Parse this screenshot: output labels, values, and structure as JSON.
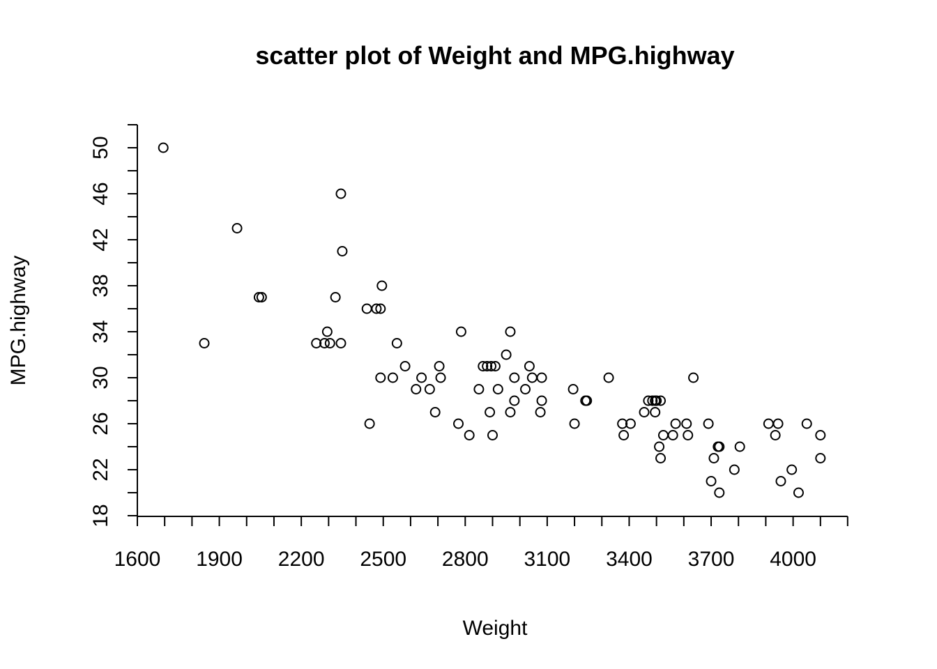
{
  "chart_data": {
    "type": "scatter",
    "title": "scatter plot of Weight and MPG.highway",
    "xlabel": "Weight",
    "ylabel": "MPG.highway",
    "xlim": [
      1600,
      4200
    ],
    "ylim": [
      18,
      52
    ],
    "x_ticks": [
      1600,
      1900,
      2200,
      2500,
      2800,
      3100,
      3400,
      3700,
      4000
    ],
    "x_minor_ticks": [
      1700,
      1800,
      2000,
      2100,
      2300,
      2400,
      2600,
      2700,
      2900,
      3000,
      3200,
      3300,
      3500,
      3600,
      3800,
      3900,
      4100
    ],
    "y_ticks": [
      18,
      22,
      26,
      30,
      34,
      38,
      42,
      46,
      50
    ],
    "y_minor_ticks": [
      20,
      24,
      28,
      32,
      36,
      40,
      44,
      48,
      52
    ],
    "grid": false,
    "legend": "none",
    "marker": "open-circle",
    "points": [
      [
        1695,
        50
      ],
      [
        1845,
        33
      ],
      [
        1965,
        43
      ],
      [
        2045,
        37
      ],
      [
        2055,
        37
      ],
      [
        2345,
        46
      ],
      [
        2350,
        41
      ],
      [
        2325,
        37
      ],
      [
        2255,
        33
      ],
      [
        2285,
        33
      ],
      [
        2295,
        34
      ],
      [
        2305,
        33
      ],
      [
        2345,
        33
      ],
      [
        2440,
        36
      ],
      [
        2475,
        36
      ],
      [
        2490,
        36
      ],
      [
        2495,
        38
      ],
      [
        2450,
        26
      ],
      [
        2490,
        30
      ],
      [
        2535,
        30
      ],
      [
        2550,
        33
      ],
      [
        2580,
        31
      ],
      [
        2620,
        29
      ],
      [
        2640,
        30
      ],
      [
        2670,
        29
      ],
      [
        2690,
        27
      ],
      [
        2705,
        31
      ],
      [
        2710,
        30
      ],
      [
        2775,
        26
      ],
      [
        2785,
        34
      ],
      [
        2815,
        25
      ],
      [
        2850,
        29
      ],
      [
        2865,
        31
      ],
      [
        2880,
        31
      ],
      [
        2890,
        27
      ],
      [
        2895,
        31
      ],
      [
        2900,
        25
      ],
      [
        2910,
        31
      ],
      [
        2920,
        29
      ],
      [
        2950,
        32
      ],
      [
        2965,
        34
      ],
      [
        2965,
        27
      ],
      [
        2980,
        28
      ],
      [
        2980,
        30
      ],
      [
        3020,
        29
      ],
      [
        3035,
        31
      ],
      [
        3045,
        30
      ],
      [
        3075,
        27
      ],
      [
        3080,
        30
      ],
      [
        3080,
        28
      ],
      [
        3195,
        29
      ],
      [
        3200,
        26
      ],
      [
        3240,
        28
      ],
      [
        3245,
        28
      ],
      [
        3325,
        30
      ],
      [
        3375,
        26
      ],
      [
        3380,
        25
      ],
      [
        3405,
        26
      ],
      [
        3455,
        27
      ],
      [
        3470,
        28
      ],
      [
        3485,
        28
      ],
      [
        3495,
        28
      ],
      [
        3495,
        27
      ],
      [
        3500,
        28
      ],
      [
        3510,
        24
      ],
      [
        3515,
        23
      ],
      [
        3515,
        28
      ],
      [
        3525,
        25
      ],
      [
        3560,
        25
      ],
      [
        3570,
        26
      ],
      [
        3610,
        26
      ],
      [
        3615,
        25
      ],
      [
        3635,
        30
      ],
      [
        3690,
        26
      ],
      [
        3700,
        21
      ],
      [
        3710,
        23
      ],
      [
        3725,
        24
      ],
      [
        3730,
        20
      ],
      [
        3730,
        24
      ],
      [
        3785,
        22
      ],
      [
        3805,
        24
      ],
      [
        3910,
        26
      ],
      [
        3935,
        25
      ],
      [
        3945,
        26
      ],
      [
        3955,
        21
      ],
      [
        3995,
        22
      ],
      [
        4020,
        20
      ],
      [
        4050,
        26
      ],
      [
        4100,
        25
      ],
      [
        4100,
        23
      ]
    ]
  }
}
